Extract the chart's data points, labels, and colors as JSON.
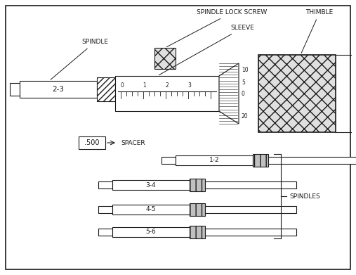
{
  "labels": {
    "spindle_lock_screw": "SPINDLE LOCK SCREW",
    "sleeve": "SLEEVE",
    "thimble": "THIMBLE",
    "spindle": "SPINDLE",
    "spacer": "SPACER",
    "spacer_val": ".500",
    "spindles": "SPINDLES",
    "main_label": "2-3",
    "spindle_labels": [
      "1-2",
      "3-4",
      "4-5",
      "5-6"
    ]
  },
  "lc": "#1a1a1a",
  "lw": 0.8,
  "label_fs": 6.5,
  "tick_label_fs": 5.5,
  "spindle_label_fs": 6.5
}
